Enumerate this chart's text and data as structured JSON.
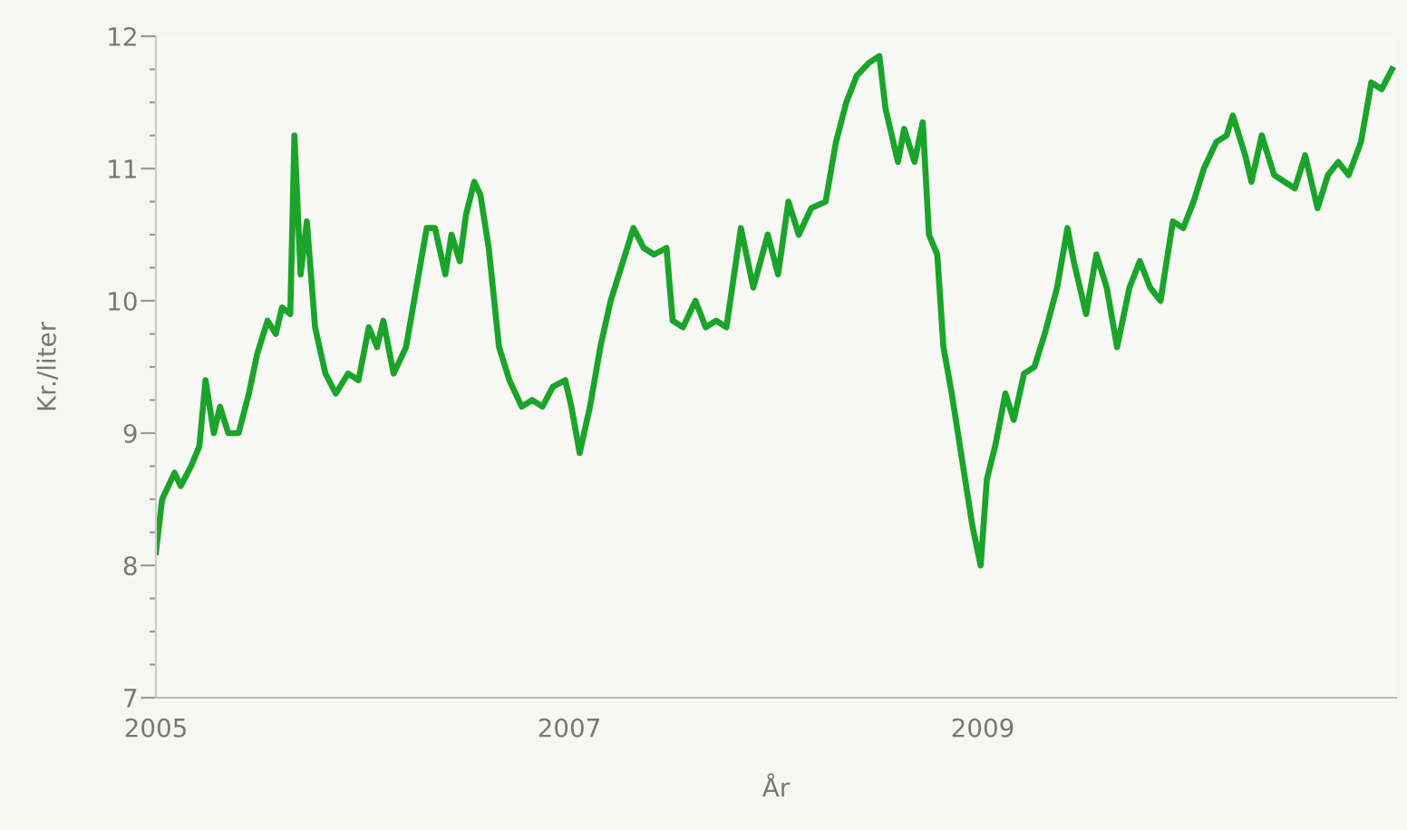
{
  "chart_data": {
    "type": "line",
    "xlabel": "År",
    "ylabel": "Kr./liter",
    "xlim": [
      2005,
      2011
    ],
    "xticks": [
      2005,
      2007,
      2009
    ],
    "ylim": [
      7,
      12
    ],
    "yticks": [
      7,
      {
        "value": 7.25,
        "label": null
      },
      {
        "value": 7.5,
        "label": null
      },
      {
        "value": 7.75,
        "label": null
      },
      8,
      {
        "value": 8.25,
        "label": null
      },
      {
        "value": 8.5,
        "label": null
      },
      {
        "value": 8.75,
        "label": null
      },
      9,
      {
        "value": 9.25,
        "label": null
      },
      {
        "value": 9.5,
        "label": null
      },
      {
        "value": 9.75,
        "label": null
      },
      10,
      {
        "value": 10.25,
        "label": null
      },
      {
        "value": 10.5,
        "label": null
      },
      {
        "value": 10.75,
        "label": null
      },
      11,
      {
        "value": 11.25,
        "label": null
      },
      {
        "value": 11.5,
        "label": null
      },
      {
        "value": 11.75,
        "label": null
      },
      12
    ],
    "grid": false,
    "marker": "none",
    "line_style": "solid",
    "series": [
      {
        "color": "#1aa52a",
        "x": [
          2005.0,
          2005.03,
          2005.09,
          2005.12,
          2005.17,
          2005.21,
          2005.24,
          2005.28,
          2005.31,
          2005.35,
          2005.4,
          2005.45,
          2005.49,
          2005.54,
          2005.58,
          2005.61,
          2005.65,
          2005.67,
          2005.7,
          2005.73,
          2005.77,
          2005.82,
          2005.87,
          2005.93,
          2005.98,
          2006.03,
          2006.07,
          2006.1,
          2006.15,
          2006.21,
          2006.26,
          2006.31,
          2006.35,
          2006.4,
          2006.43,
          2006.47,
          2006.5,
          2006.54,
          2006.57,
          2006.61,
          2006.66,
          2006.71,
          2006.77,
          2006.82,
          2006.87,
          2006.92,
          2006.98,
          2007.01,
          2007.05,
          2007.1,
          2007.15,
          2007.2,
          2007.26,
          2007.31,
          2007.36,
          2007.41,
          2007.47,
          2007.5,
          2007.55,
          2007.61,
          2007.66,
          2007.71,
          2007.76,
          2007.83,
          2007.89,
          2007.96,
          2008.01,
          2008.06,
          2008.11,
          2008.17,
          2008.24,
          2008.29,
          2008.34,
          2008.39,
          2008.45,
          2008.5,
          2008.53,
          2008.59,
          2008.62,
          2008.67,
          2008.71,
          2008.74,
          2008.78,
          2008.81,
          2008.85,
          2008.88,
          2008.92,
          2008.95,
          2008.99,
          2009.02,
          2009.06,
          2009.11,
          2009.15,
          2009.2,
          2009.25,
          2009.3,
          2009.36,
          2009.41,
          2009.44,
          2009.5,
          2009.55,
          2009.6,
          2009.65,
          2009.71,
          2009.76,
          2009.81,
          2009.86,
          2009.92,
          2009.97,
          2010.02,
          2010.07,
          2010.13,
          2010.18,
          2010.21,
          2010.27,
          2010.3,
          2010.35,
          2010.41,
          2010.46,
          2010.51,
          2010.56,
          2010.62,
          2010.67,
          2010.72,
          2010.77,
          2010.83,
          2010.88,
          2010.93,
          2010.98
        ],
        "values": [
          8.1,
          8.5,
          8.7,
          8.6,
          8.75,
          8.9,
          9.4,
          9.0,
          9.2,
          9.0,
          9.0,
          9.3,
          9.6,
          9.85,
          9.75,
          9.95,
          9.9,
          11.25,
          10.2,
          10.6,
          9.8,
          9.45,
          9.3,
          9.45,
          9.4,
          9.8,
          9.65,
          9.85,
          9.45,
          9.65,
          10.1,
          10.55,
          10.55,
          10.2,
          10.5,
          10.3,
          10.65,
          10.9,
          10.8,
          10.4,
          9.65,
          9.4,
          9.2,
          9.25,
          9.2,
          9.35,
          9.4,
          9.2,
          8.85,
          9.2,
          9.65,
          10.0,
          10.3,
          10.55,
          10.4,
          10.35,
          10.4,
          9.85,
          9.8,
          10.0,
          9.8,
          9.85,
          9.8,
          10.55,
          10.1,
          10.5,
          10.2,
          10.75,
          10.5,
          10.7,
          10.75,
          11.2,
          11.5,
          11.7,
          11.8,
          11.85,
          11.45,
          11.05,
          11.3,
          11.05,
          11.35,
          10.5,
          10.35,
          9.65,
          9.3,
          9.0,
          8.6,
          8.3,
          8.0,
          8.65,
          8.9,
          9.3,
          9.1,
          9.45,
          9.5,
          9.75,
          10.1,
          10.55,
          10.3,
          9.9,
          10.35,
          10.1,
          9.65,
          10.1,
          10.3,
          10.1,
          10.0,
          10.6,
          10.55,
          10.75,
          11.0,
          11.2,
          11.25,
          11.4,
          11.1,
          10.9,
          11.25,
          10.95,
          10.9,
          10.85,
          11.1,
          10.7,
          10.95,
          11.05,
          10.95,
          11.2,
          11.65,
          11.6,
          11.75
        ]
      }
    ]
  }
}
